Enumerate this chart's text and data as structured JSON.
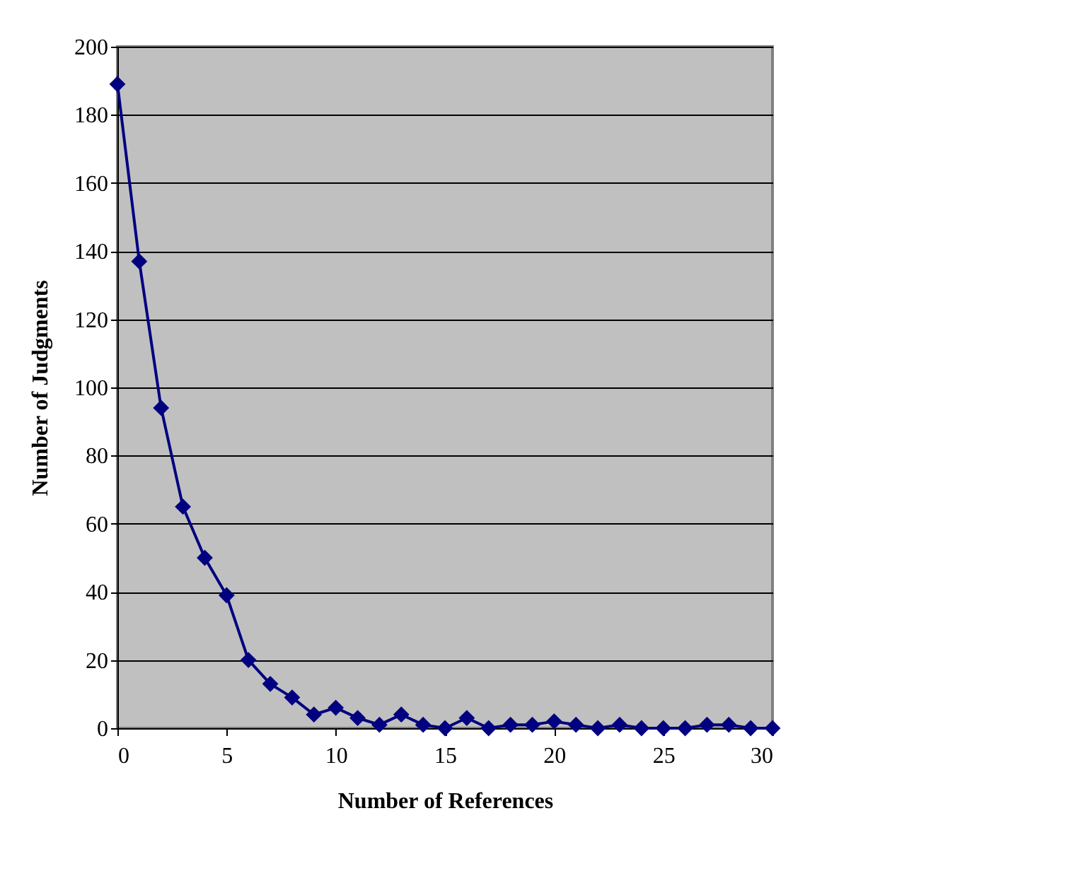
{
  "chart_data": {
    "type": "line",
    "xlabel": "Number of References",
    "ylabel": "Number of Judgments",
    "x": [
      0,
      1,
      2,
      3,
      4,
      5,
      6,
      7,
      8,
      9,
      10,
      11,
      12,
      13,
      14,
      15,
      16,
      17,
      18,
      19,
      20,
      21,
      22,
      23,
      24,
      25,
      26,
      27,
      28,
      29,
      30
    ],
    "series": [
      {
        "color": "#000080",
        "values": [
          189,
          137,
          94,
          65,
          50,
          39,
          20,
          13,
          9,
          4,
          6,
          3,
          1,
          4,
          1,
          0,
          3,
          0,
          1,
          1,
          2,
          1,
          0,
          1,
          0,
          0,
          0,
          1,
          1,
          0,
          0
        ]
      }
    ],
    "xlim": [
      0,
      30
    ],
    "xticks": [
      0,
      5,
      10,
      15,
      20,
      25,
      30
    ],
    "ylim": [
      0,
      200
    ],
    "yticks": [
      0,
      20,
      40,
      60,
      80,
      100,
      120,
      140,
      160,
      180,
      200
    ],
    "grid": "y",
    "marker": "diamond",
    "line_style": "solid"
  }
}
